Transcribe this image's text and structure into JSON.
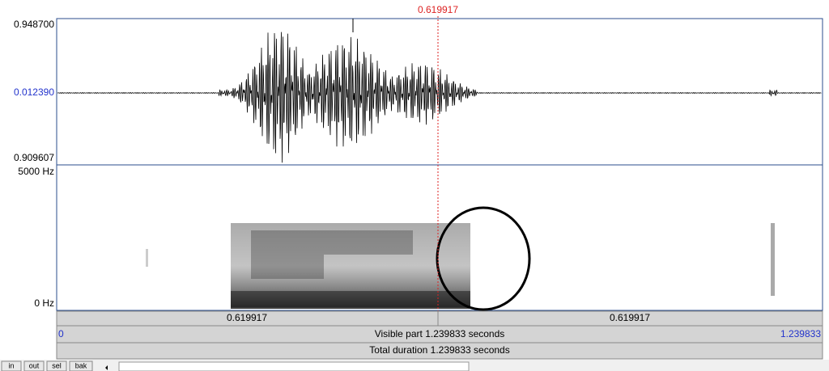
{
  "cursor_time": "0.619917",
  "waveform": {
    "max": "0.948700",
    "mid": "0.012390",
    "min": "0.909607"
  },
  "spectrogram": {
    "top": "5000 Hz",
    "bottom": "0 Hz"
  },
  "time_bar": {
    "left": "0.619917",
    "right": "0.619917"
  },
  "visible_bar": {
    "start": "0",
    "label": "Visible part 1.239833 seconds",
    "end": "1.239833"
  },
  "total_bar": {
    "label": "Total duration 1.239833 seconds"
  },
  "buttons": [
    "in",
    "out",
    "sel",
    "bak"
  ]
}
